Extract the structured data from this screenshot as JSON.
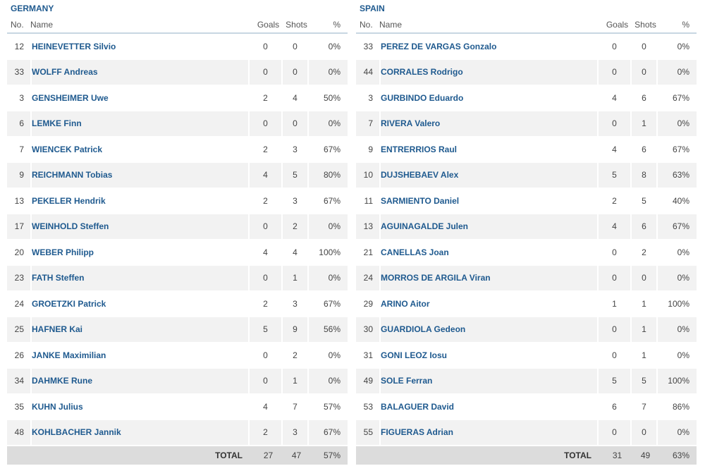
{
  "columns": {
    "no": "No.",
    "name": "Name",
    "goals": "Goals",
    "shots": "Shots",
    "pct": "%"
  },
  "teams": [
    {
      "name": "GERMANY",
      "players": [
        {
          "no": "12",
          "name": "HEINEVETTER Silvio",
          "goals": "0",
          "shots": "0",
          "pct": "0%"
        },
        {
          "no": "33",
          "name": "WOLFF Andreas",
          "goals": "0",
          "shots": "0",
          "pct": "0%"
        },
        {
          "no": "3",
          "name": "GENSHEIMER Uwe",
          "goals": "2",
          "shots": "4",
          "pct": "50%"
        },
        {
          "no": "6",
          "name": "LEMKE Finn",
          "goals": "0",
          "shots": "0",
          "pct": "0%"
        },
        {
          "no": "7",
          "name": "WIENCEK Patrick",
          "goals": "2",
          "shots": "3",
          "pct": "67%"
        },
        {
          "no": "9",
          "name": "REICHMANN Tobias",
          "goals": "4",
          "shots": "5",
          "pct": "80%"
        },
        {
          "no": "13",
          "name": "PEKELER Hendrik",
          "goals": "2",
          "shots": "3",
          "pct": "67%"
        },
        {
          "no": "17",
          "name": "WEINHOLD Steffen",
          "goals": "0",
          "shots": "2",
          "pct": "0%"
        },
        {
          "no": "20",
          "name": "WEBER Philipp",
          "goals": "4",
          "shots": "4",
          "pct": "100%"
        },
        {
          "no": "23",
          "name": "FATH Steffen",
          "goals": "0",
          "shots": "1",
          "pct": "0%"
        },
        {
          "no": "24",
          "name": "GROETZKI Patrick",
          "goals": "2",
          "shots": "3",
          "pct": "67%"
        },
        {
          "no": "25",
          "name": "HAFNER Kai",
          "goals": "5",
          "shots": "9",
          "pct": "56%"
        },
        {
          "no": "26",
          "name": "JANKE Maximilian",
          "goals": "0",
          "shots": "2",
          "pct": "0%"
        },
        {
          "no": "34",
          "name": "DAHMKE Rune",
          "goals": "0",
          "shots": "1",
          "pct": "0%"
        },
        {
          "no": "35",
          "name": "KUHN Julius",
          "goals": "4",
          "shots": "7",
          "pct": "57%"
        },
        {
          "no": "48",
          "name": "KOHLBACHER Jannik",
          "goals": "2",
          "shots": "3",
          "pct": "67%"
        }
      ],
      "total": {
        "label": "TOTAL",
        "goals": "27",
        "shots": "47",
        "pct": "57%"
      }
    },
    {
      "name": "SPAIN",
      "players": [
        {
          "no": "33",
          "name": "PEREZ DE VARGAS Gonzalo",
          "goals": "0",
          "shots": "0",
          "pct": "0%"
        },
        {
          "no": "44",
          "name": "CORRALES Rodrigo",
          "goals": "0",
          "shots": "0",
          "pct": "0%"
        },
        {
          "no": "3",
          "name": "GURBINDO Eduardo",
          "goals": "4",
          "shots": "6",
          "pct": "67%"
        },
        {
          "no": "7",
          "name": "RIVERA Valero",
          "goals": "0",
          "shots": "1",
          "pct": "0%"
        },
        {
          "no": "9",
          "name": "ENTRERRIOS Raul",
          "goals": "4",
          "shots": "6",
          "pct": "67%"
        },
        {
          "no": "10",
          "name": "DUJSHEBAEV Alex",
          "goals": "5",
          "shots": "8",
          "pct": "63%"
        },
        {
          "no": "11",
          "name": "SARMIENTO Daniel",
          "goals": "2",
          "shots": "5",
          "pct": "40%"
        },
        {
          "no": "13",
          "name": "AGUINAGALDE Julen",
          "goals": "4",
          "shots": "6",
          "pct": "67%"
        },
        {
          "no": "21",
          "name": "CANELLAS Joan",
          "goals": "0",
          "shots": "2",
          "pct": "0%"
        },
        {
          "no": "24",
          "name": "MORROS DE ARGILA Viran",
          "goals": "0",
          "shots": "0",
          "pct": "0%"
        },
        {
          "no": "29",
          "name": "ARINO Aitor",
          "goals": "1",
          "shots": "1",
          "pct": "100%"
        },
        {
          "no": "30",
          "name": "GUARDIOLA Gedeon",
          "goals": "0",
          "shots": "1",
          "pct": "0%"
        },
        {
          "no": "31",
          "name": "GONI LEOZ Iosu",
          "goals": "0",
          "shots": "1",
          "pct": "0%"
        },
        {
          "no": "49",
          "name": "SOLE Ferran",
          "goals": "5",
          "shots": "5",
          "pct": "100%"
        },
        {
          "no": "53",
          "name": "BALAGUER David",
          "goals": "6",
          "shots": "7",
          "pct": "86%"
        },
        {
          "no": "55",
          "name": "FIGUERAS Adrian",
          "goals": "0",
          "shots": "0",
          "pct": "0%"
        }
      ],
      "total": {
        "label": "TOTAL",
        "goals": "31",
        "shots": "49",
        "pct": "63%"
      }
    }
  ]
}
